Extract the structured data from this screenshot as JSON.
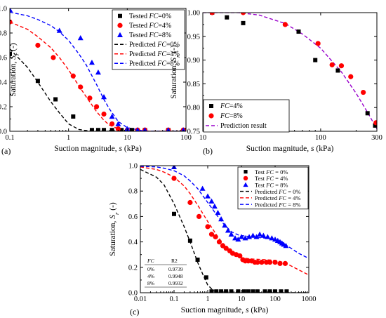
{
  "chart_data": [
    {
      "panel": "(a)",
      "type": "scatter",
      "xlabel": "Suction magnitude, s (kPa)",
      "ylabel": "Saturation, Sr (-)",
      "xscale": "log",
      "xlim": [
        0.1,
        100
      ],
      "ylim": [
        0.0,
        1.0
      ],
      "xticks": [
        0.1,
        1,
        10,
        100
      ],
      "xtick_labels": [
        "0.1",
        "1",
        "10",
        "100"
      ],
      "yticks": [
        0.0,
        0.2,
        0.4,
        0.6,
        0.8,
        1.0
      ],
      "ytick_labels": [
        "0.0",
        "0.2",
        "0.4",
        "0.6",
        "0.8",
        "1.0"
      ],
      "legend_position": "top-right",
      "series": [
        {
          "name": "Tested FC=0%",
          "kind": "points",
          "marker": "square",
          "color": "#000000",
          "x": [
            0.1,
            0.3,
            0.6,
            1.2,
            2.5,
            3.2,
            4.0,
            5.5,
            8.0,
            12,
            20,
            50,
            95
          ],
          "y": [
            0.63,
            0.41,
            0.26,
            0.12,
            0.01,
            0.01,
            0.01,
            0.01,
            0.01,
            0.01,
            0.01,
            0.01,
            0.01
          ]
        },
        {
          "name": "Tested FC=4%",
          "kind": "points",
          "marker": "circle",
          "color": "#ff0000",
          "x": [
            0.1,
            0.3,
            0.55,
            1.2,
            1.6,
            2.3,
            3.0,
            4.0,
            5.5,
            7.0,
            10,
            15,
            20,
            50,
            90
          ],
          "y": [
            0.89,
            0.7,
            0.6,
            0.45,
            0.36,
            0.27,
            0.2,
            0.14,
            0.06,
            0.02,
            0.01,
            0.01,
            0.01,
            0.01,
            0.01
          ]
        },
        {
          "name": "Tested FC=8%",
          "kind": "points",
          "marker": "triangle",
          "color": "#0000ff",
          "x": [
            0.1,
            0.7,
            1.6,
            2.5,
            3.2,
            4.0,
            5.5,
            7.0,
            10,
            15,
            20,
            50,
            90
          ],
          "y": [
            0.99,
            0.82,
            0.76,
            0.56,
            0.48,
            0.28,
            0.12,
            0.06,
            0.02,
            0.01,
            0.01,
            0.01,
            0.01
          ]
        },
        {
          "name": "Predicted FC=0%",
          "kind": "line",
          "color": "#000000",
          "x": [
            0.1,
            0.2,
            0.3,
            0.5,
            0.7,
            1.0,
            1.5,
            2.0,
            3.0,
            5.0,
            10,
            30,
            100
          ],
          "y": [
            0.67,
            0.52,
            0.4,
            0.24,
            0.15,
            0.06,
            0.015,
            0.005,
            0.0,
            0.0,
            0.0,
            0.0,
            0.0
          ]
        },
        {
          "name": "Predicted FC=4%",
          "kind": "line",
          "color": "#ff0000",
          "x": [
            0.1,
            0.2,
            0.3,
            0.5,
            0.7,
            1.0,
            1.5,
            2.0,
            3.0,
            4.0,
            5.0,
            7.0,
            10,
            20,
            100
          ],
          "y": [
            0.89,
            0.83,
            0.77,
            0.68,
            0.6,
            0.5,
            0.37,
            0.28,
            0.16,
            0.09,
            0.05,
            0.02,
            0.005,
            0.0,
            0.0
          ]
        },
        {
          "name": "Predicted FC=8%",
          "kind": "line",
          "color": "#0000ff",
          "x": [
            0.1,
            0.2,
            0.3,
            0.5,
            0.7,
            1.0,
            1.5,
            2.0,
            3.0,
            4.0,
            5.0,
            7.0,
            10,
            20,
            100
          ],
          "y": [
            0.97,
            0.94,
            0.91,
            0.86,
            0.81,
            0.74,
            0.63,
            0.54,
            0.38,
            0.26,
            0.18,
            0.08,
            0.03,
            0.0,
            0.0
          ]
        }
      ]
    },
    {
      "panel": "(b)",
      "type": "scatter",
      "xlabel": "Suction magnitude, s (kPa)",
      "ylabel": "Saturation, Sr (-)",
      "xscale": "log",
      "xlim": [
        10,
        300
      ],
      "ylim": [
        0.75,
        1.0
      ],
      "xticks": [
        10,
        100,
        300
      ],
      "xtick_labels": [
        "10",
        "100",
        "300"
      ],
      "yticks": [
        0.75,
        0.8,
        0.85,
        0.9,
        0.95,
        1.0
      ],
      "ytick_labels": [
        "0.75",
        "0.80",
        "0.85",
        "0.90",
        "0.95",
        "1.00"
      ],
      "legend_position": "bottom-left",
      "series": [
        {
          "name": "FC=4%",
          "kind": "points",
          "marker": "square",
          "color": "#000000",
          "x": [
            12,
            16,
            22,
            65,
            90,
            140,
            250,
            290
          ],
          "y": [
            1.0,
            0.99,
            0.978,
            0.96,
            0.9,
            0.878,
            0.788,
            0.762
          ]
        },
        {
          "name": "FC=8%",
          "kind": "points",
          "marker": "circle",
          "color": "#ff0000",
          "x": [
            12,
            22,
            50,
            95,
            125,
            150,
            180,
            230,
            295
          ],
          "y": [
            1.0,
            1.0,
            0.975,
            0.935,
            0.89,
            0.888,
            0.865,
            0.832,
            0.768
          ]
        },
        {
          "name": "Prediction result",
          "kind": "line",
          "color": "#9900cc",
          "x": [
            10,
            20,
            30,
            50,
            70,
            100,
            150,
            200,
            250,
            300
          ],
          "y": [
            1.0,
            1.0,
            0.995,
            0.977,
            0.955,
            0.925,
            0.875,
            0.83,
            0.79,
            0.755
          ]
        }
      ]
    },
    {
      "panel": "(c)",
      "type": "scatter",
      "xlabel": "Suction magnitude, s (kPa)",
      "ylabel": "Saturation, Sr (-)",
      "xscale": "log",
      "xlim": [
        0.01,
        1000
      ],
      "ylim": [
        0.0,
        1.0
      ],
      "xticks": [
        0.01,
        0.1,
        1,
        10,
        100,
        1000
      ],
      "xtick_labels": [
        "0.01",
        "0.1",
        "1",
        "10",
        "100",
        "1000"
      ],
      "yticks": [
        0.0,
        0.2,
        0.4,
        0.6,
        0.8,
        1.0
      ],
      "ytick_labels": [
        "0.0",
        "0.2",
        "0.4",
        "0.6",
        "0.8",
        "1.0"
      ],
      "legend_position": "top-right",
      "series": [
        {
          "name": "Test FC = 0%",
          "kind": "points",
          "marker": "square",
          "color": "#000000",
          "x": [
            0.1,
            0.3,
            0.5,
            0.9,
            1.3,
            1.8,
            2.5,
            3.5,
            5,
            8,
            12,
            16,
            22,
            30,
            50,
            70,
            100,
            150,
            220
          ],
          "y": [
            0.62,
            0.41,
            0.26,
            0.12,
            0.01,
            0.01,
            0.01,
            0.01,
            0.01,
            0.01,
            0.01,
            0.01,
            0.01,
            0.01,
            0.01,
            0.01,
            0.01,
            0.01,
            0.01
          ]
        },
        {
          "name": "Test FC = 4%",
          "kind": "points",
          "marker": "circle",
          "color": "#ff0000",
          "x": [
            0.1,
            0.3,
            0.55,
            1.0,
            1.3,
            1.7,
            2.2,
            2.8,
            3.5,
            4.5,
            5.5,
            7,
            9,
            11,
            13,
            16,
            20,
            25,
            30,
            40,
            55,
            70,
            100,
            140,
            200
          ],
          "y": [
            0.9,
            0.71,
            0.6,
            0.52,
            0.46,
            0.44,
            0.4,
            0.37,
            0.35,
            0.33,
            0.31,
            0.3,
            0.29,
            0.26,
            0.25,
            0.25,
            0.25,
            0.24,
            0.24,
            0.24,
            0.24,
            0.24,
            0.24,
            0.23,
            0.23
          ]
        },
        {
          "name": "Test FC = 8%",
          "kind": "points",
          "marker": "triangle",
          "color": "#0000ff",
          "x": [
            0.1,
            0.7,
            1.0,
            1.3,
            1.6,
            2.0,
            2.5,
            3.2,
            4,
            5,
            6.5,
            8,
            10,
            13,
            17,
            22,
            28,
            35,
            45,
            60,
            80,
            100,
            120,
            140,
            160,
            180,
            210
          ],
          "y": [
            0.99,
            0.82,
            0.76,
            0.72,
            0.68,
            0.63,
            0.58,
            0.53,
            0.49,
            0.46,
            0.43,
            0.42,
            0.44,
            0.43,
            0.44,
            0.45,
            0.44,
            0.46,
            0.45,
            0.44,
            0.43,
            0.42,
            0.41,
            0.4,
            0.39,
            0.38,
            0.37
          ]
        },
        {
          "name": "Predicted FC = 0%",
          "kind": "line",
          "color": "#000000",
          "x": [
            0.01,
            0.03,
            0.05,
            0.1,
            0.2,
            0.3,
            0.5,
            0.7,
            1.0,
            1.5,
            2.0,
            3.0,
            10,
            100,
            1000
          ],
          "y": [
            0.97,
            0.91,
            0.85,
            0.7,
            0.52,
            0.4,
            0.24,
            0.15,
            0.06,
            0.015,
            0.005,
            0.0,
            0.0,
            0.0,
            0.0
          ]
        },
        {
          "name": "Predicted FC = 4%",
          "kind": "line",
          "color": "#ff0000",
          "x": [
            0.01,
            0.03,
            0.05,
            0.1,
            0.2,
            0.3,
            0.5,
            1.0,
            2.0,
            3.0,
            5.0,
            8.0,
            10,
            20,
            50,
            100,
            200,
            500,
            1000
          ],
          "y": [
            0.99,
            0.97,
            0.95,
            0.91,
            0.84,
            0.78,
            0.69,
            0.56,
            0.44,
            0.38,
            0.32,
            0.285,
            0.275,
            0.265,
            0.26,
            0.255,
            0.235,
            0.18,
            0.14
          ]
        },
        {
          "name": "Predicted FC = 8%",
          "kind": "line",
          "color": "#0000ff",
          "x": [
            0.01,
            0.03,
            0.05,
            0.1,
            0.2,
            0.3,
            0.5,
            1.0,
            2.0,
            3.0,
            5.0,
            8.0,
            10,
            20,
            50,
            100,
            200,
            500,
            1000
          ],
          "y": [
            0.995,
            0.99,
            0.98,
            0.96,
            0.92,
            0.88,
            0.82,
            0.71,
            0.6,
            0.54,
            0.48,
            0.455,
            0.45,
            0.44,
            0.43,
            0.42,
            0.38,
            0.31,
            0.27
          ]
        }
      ],
      "fit_table": {
        "headers": [
          "FC",
          "R2"
        ],
        "rows": [
          [
            "0%",
            "0.9739"
          ],
          [
            "4%",
            "0.9948"
          ],
          [
            "8%",
            "0.9932"
          ]
        ]
      }
    }
  ]
}
